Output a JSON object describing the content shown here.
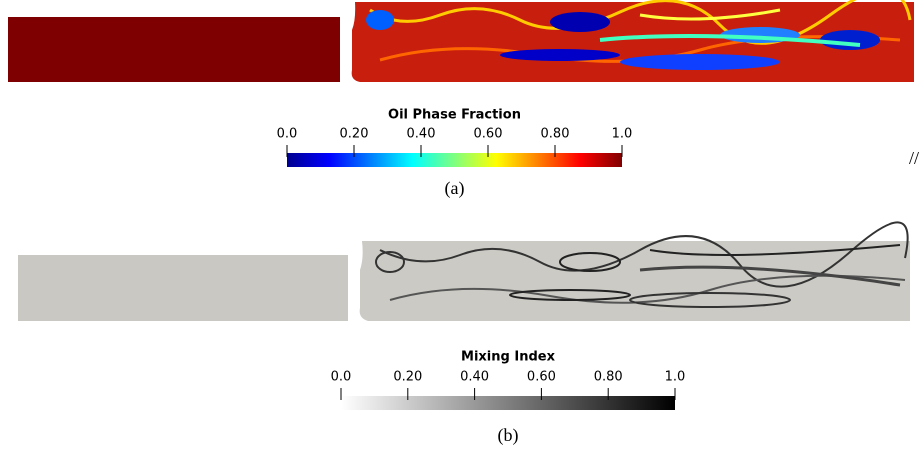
{
  "panels": [
    {
      "colorbar": {
        "title": "Oil Phase Fraction",
        "lim": [
          0,
          1
        ],
        "ticks": [
          {
            "value": 0,
            "label": "0.0"
          },
          {
            "value": 0.2,
            "label": "0.20"
          },
          {
            "value": 0.4,
            "label": "0.40"
          },
          {
            "value": 0.6,
            "label": "0.60"
          },
          {
            "value": 0.8,
            "label": "0.80"
          },
          {
            "value": 1,
            "label": "1.0"
          }
        ]
      },
      "caption": "(a)",
      "side_mark": "//"
    },
    {
      "colorbar": {
        "title": "Mixing Index",
        "lim": [
          0,
          1
        ],
        "ticks": [
          {
            "value": 0,
            "label": "0.0"
          },
          {
            "value": 0.2,
            "label": "0.20"
          },
          {
            "value": 0.4,
            "label": "0.40"
          },
          {
            "value": 0.6,
            "label": "0.60"
          },
          {
            "value": 0.8,
            "label": "0.80"
          },
          {
            "value": 1,
            "label": "1.0"
          }
        ]
      },
      "caption": "(b)"
    }
  ]
}
